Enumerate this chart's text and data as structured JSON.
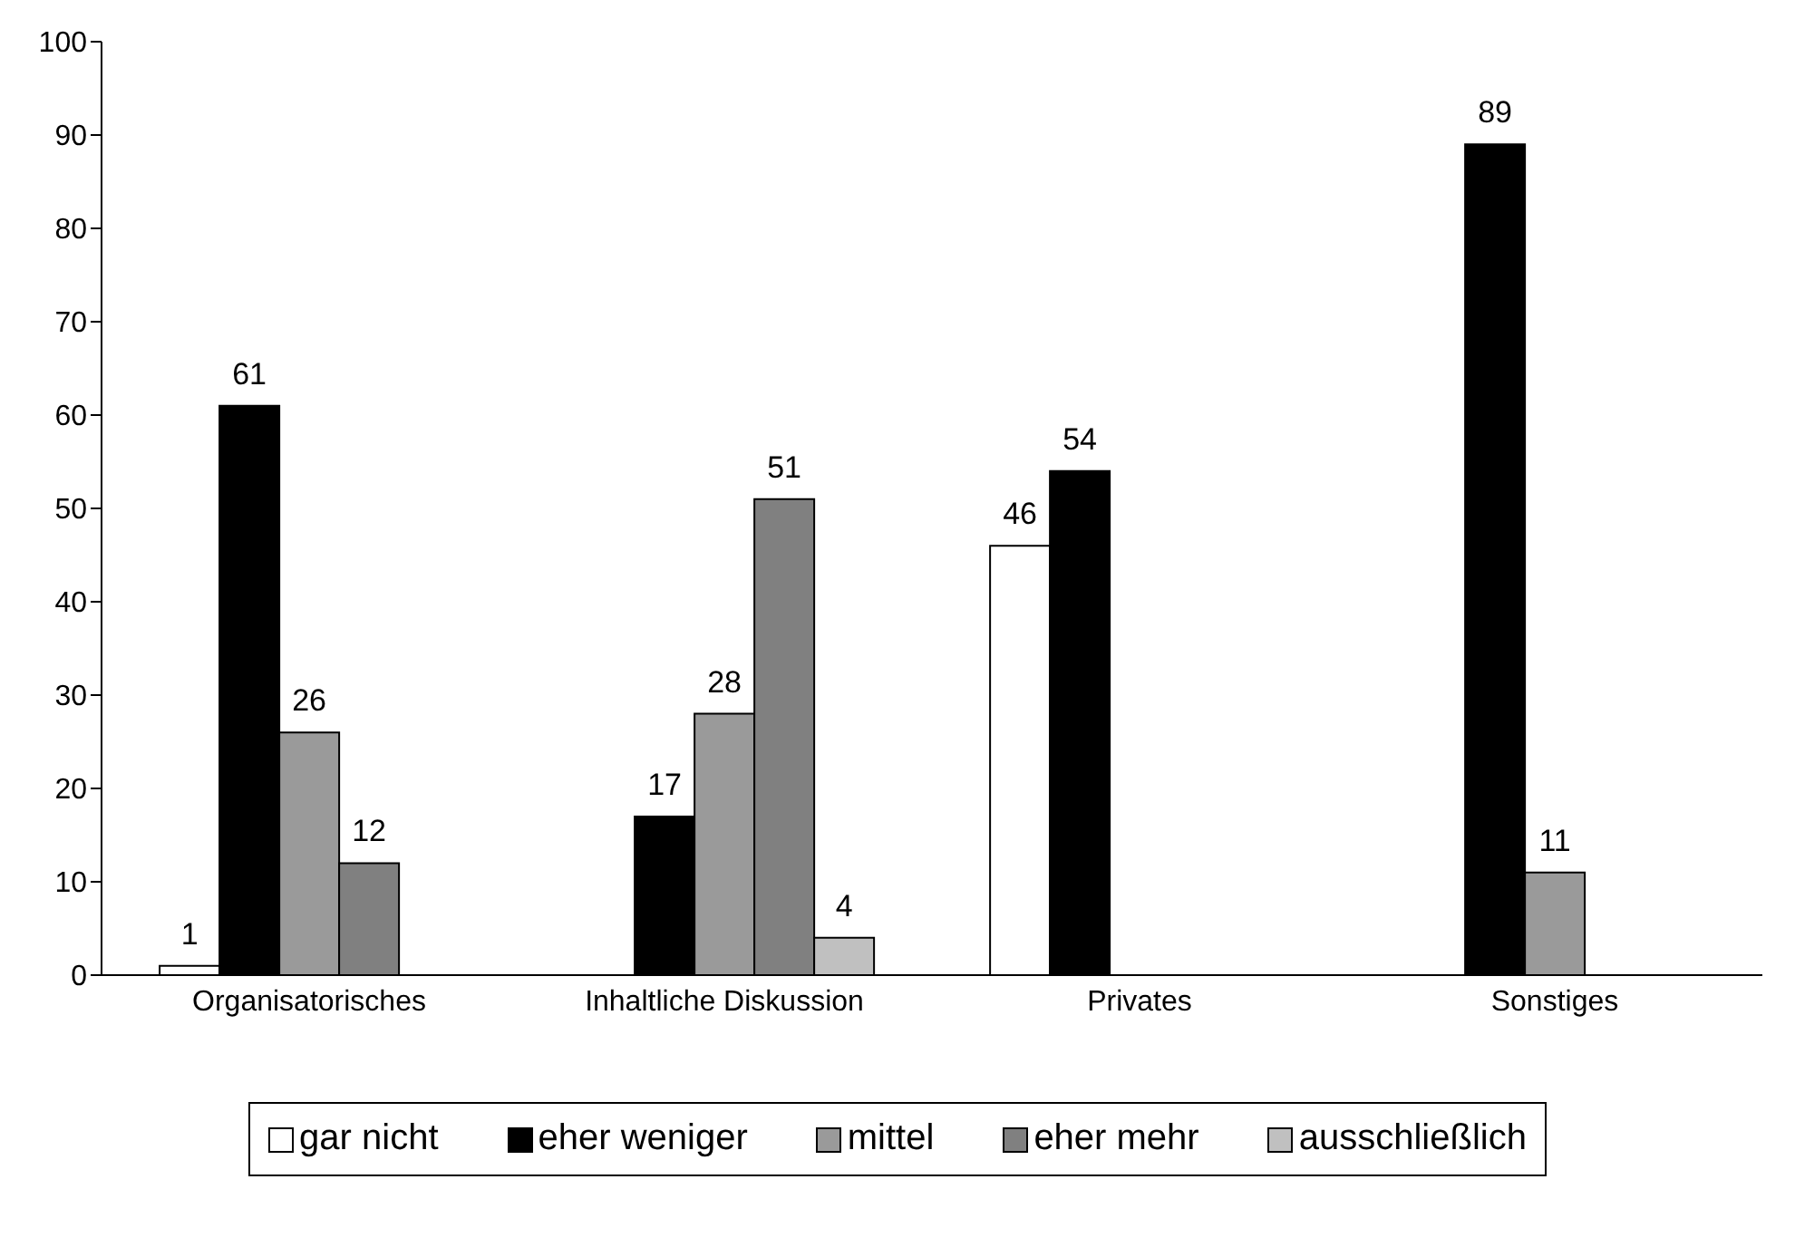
{
  "chart_data": {
    "type": "bar",
    "categories": [
      "Organisatorisches",
      "Inhaltliche Diskussion",
      "Privates",
      "Sonstiges"
    ],
    "series": [
      {
        "name": "gar nicht",
        "color": "#ffffff",
        "values": [
          1,
          null,
          46,
          null
        ]
      },
      {
        "name": "eher weniger",
        "color": "#000000",
        "values": [
          61,
          17,
          54,
          89
        ]
      },
      {
        "name": "mittel",
        "color": "#9a9a9a",
        "values": [
          26,
          28,
          null,
          11
        ]
      },
      {
        "name": "eher mehr",
        "color": "#808080",
        "values": [
          12,
          51,
          null,
          null
        ]
      },
      {
        "name": "ausschließlich",
        "color": "#c0c0c0",
        "values": [
          null,
          4,
          null,
          null
        ]
      }
    ],
    "ylim": [
      0,
      100
    ],
    "yticks": [
      0,
      10,
      20,
      30,
      40,
      50,
      60,
      70,
      80,
      90,
      100
    ],
    "data_labels": true,
    "grid": false,
    "legend": "bottom"
  }
}
